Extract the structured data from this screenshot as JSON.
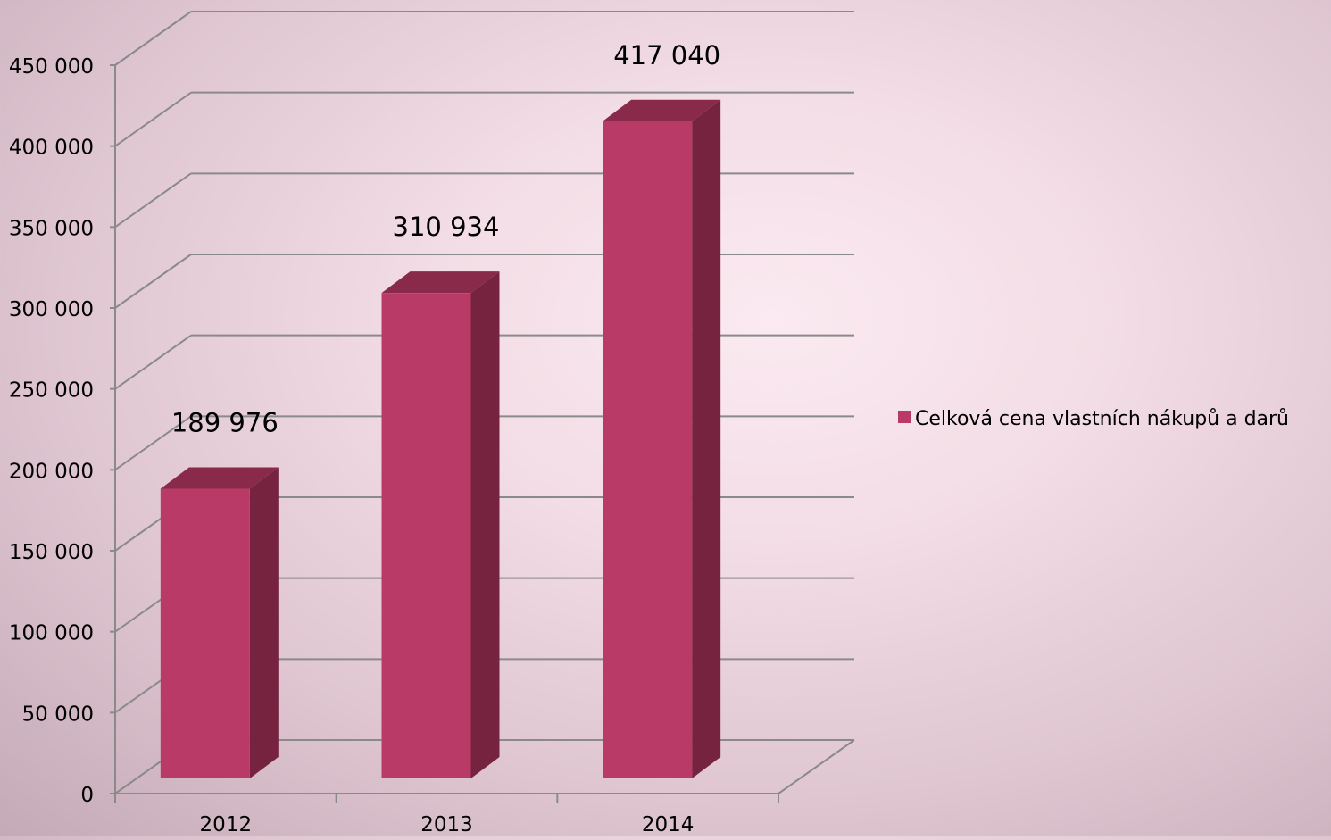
{
  "chart_data": {
    "type": "bar",
    "title": "",
    "xlabel": "",
    "ylabel": "",
    "categories": [
      "2012",
      "2013",
      "2014"
    ],
    "series": [
      {
        "name": "Celková cena vlastních nákupů  a darů",
        "values": [
          189976,
          310934,
          417040
        ],
        "data_labels": [
          "189 976",
          "310 934",
          "417 040"
        ]
      }
    ],
    "ylim": [
      0,
      450000
    ],
    "y_ticks": [
      0,
      50000,
      100000,
      150000,
      200000,
      250000,
      300000,
      350000,
      400000,
      450000
    ],
    "y_tick_labels": [
      "0",
      "50 000",
      "100 000",
      "150 000",
      "200 000",
      "250 000",
      "300 000",
      "350 000",
      "400 000",
      "450 000"
    ],
    "grid": true,
    "three_d": true,
    "legend_position": "right",
    "colors": {
      "bar_front": "#b93a66",
      "bar_top": "#8a2a4a",
      "bar_side": "#76233f",
      "grid": "#8a8a8a"
    }
  }
}
